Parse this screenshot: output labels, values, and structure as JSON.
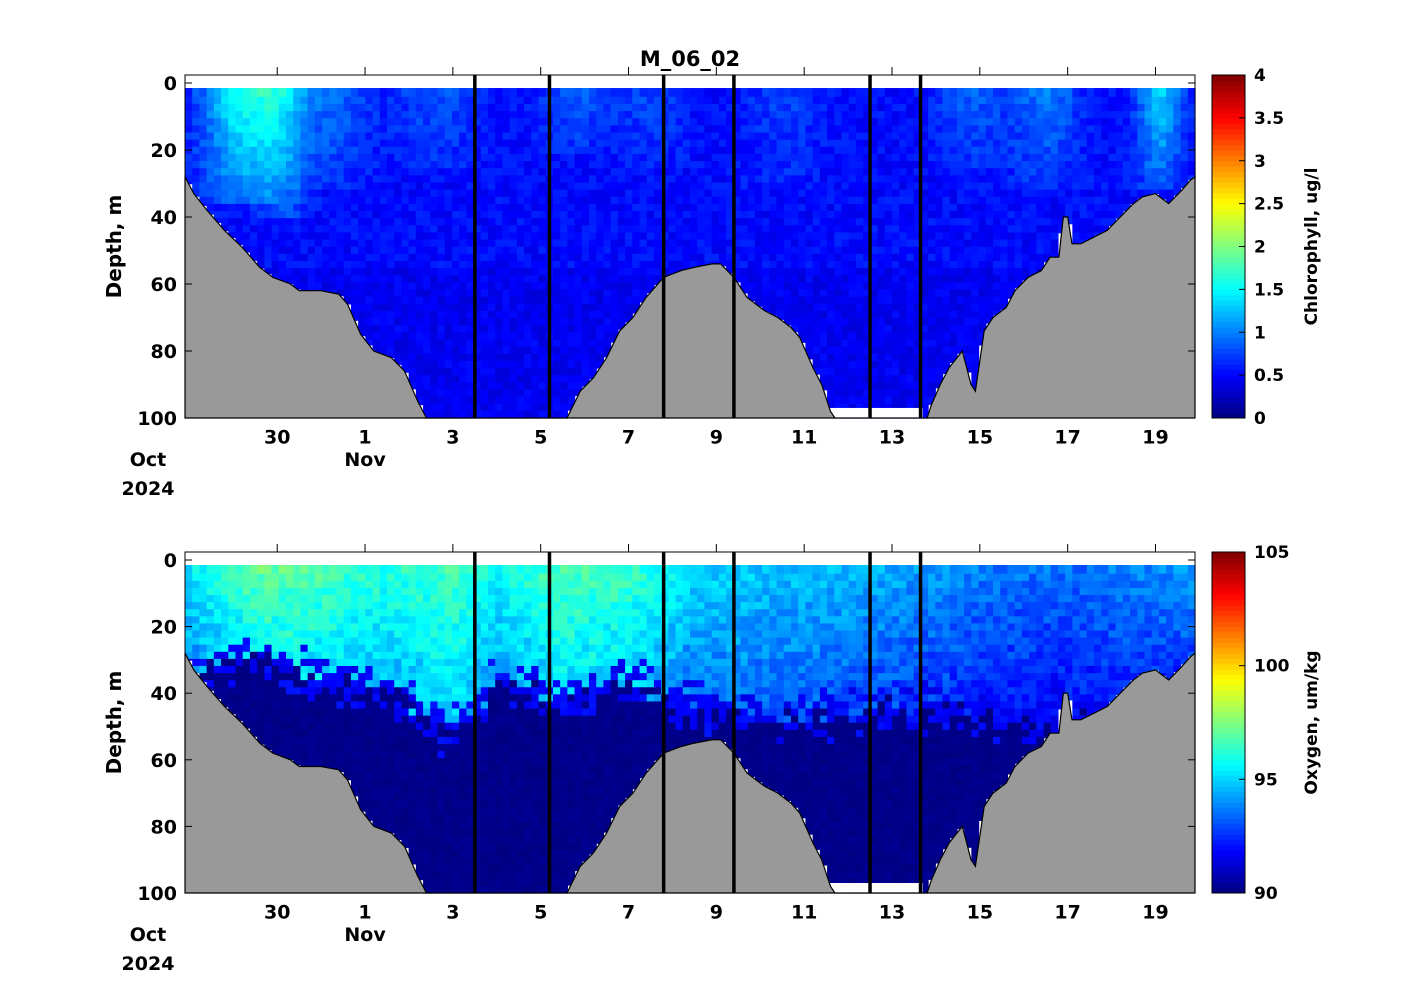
{
  "title": "M_06_02",
  "chart_data": [
    {
      "type": "heatmap",
      "variable": "Chlorophyll",
      "ylabel": "Depth, m",
      "colorbar_label": "Chlorophyll, ug/l",
      "ylim": [
        0,
        100
      ],
      "y_ticks": [
        "0",
        "20",
        "40",
        "60",
        "80",
        "100"
      ],
      "x_tick_labels": [
        "30",
        "1",
        "3",
        "5",
        "7",
        "9",
        "11",
        "13",
        "15",
        "17",
        "19"
      ],
      "x_month_labels": [
        {
          "month": "Oct",
          "year": "2024"
        },
        {
          "month": "Nov",
          "year": ""
        }
      ],
      "clim": [
        0,
        4
      ],
      "colorbar_ticks": [
        "0",
        "0.5",
        "1",
        "1.5",
        "2",
        "2.5",
        "3",
        "3.5",
        "4"
      ],
      "colormap": "jet",
      "bathymetry_color": "#999999",
      "background_value": 0.45,
      "blooms": [
        {
          "center_day": 29.2,
          "width": 0.9,
          "value": 1.5,
          "depth_max": 35
        },
        {
          "center_day": 30.1,
          "width": 0.6,
          "value": 1.1,
          "depth_max": 40
        },
        {
          "center_day": 31.3,
          "width": 0.8,
          "value": 0.85,
          "depth_max": 30
        },
        {
          "center_day": 33.6,
          "width": 1.0,
          "value": 0.75,
          "depth_max": 25
        },
        {
          "center_day": 36.8,
          "width": 0.8,
          "value": 0.8,
          "depth_max": 20
        },
        {
          "center_day": 38.5,
          "width": 0.8,
          "value": 0.7,
          "depth_max": 25
        },
        {
          "center_day": 41.5,
          "width": 0.8,
          "value": 0.7,
          "depth_max": 30
        },
        {
          "center_day": 45.8,
          "width": 0.8,
          "value": 0.8,
          "depth_max": 25
        },
        {
          "center_day": 47.5,
          "width": 0.8,
          "value": 0.9,
          "depth_max": 30
        },
        {
          "center_day": 50.1,
          "width": 0.5,
          "value": 1.3,
          "depth_max": 30
        }
      ]
    },
    {
      "type": "heatmap",
      "variable": "Oxygen",
      "ylabel": "Depth, m",
      "colorbar_label": "Oxygen, um/kg",
      "ylim": [
        0,
        100
      ],
      "y_ticks": [
        "0",
        "20",
        "40",
        "60",
        "80",
        "100"
      ],
      "x_tick_labels": [
        "30",
        "1",
        "3",
        "5",
        "7",
        "9",
        "11",
        "13",
        "15",
        "17",
        "19"
      ],
      "x_month_labels": [
        {
          "month": "Oct",
          "year": "2024"
        },
        {
          "month": "Nov",
          "year": ""
        }
      ],
      "clim": [
        90,
        105
      ],
      "colorbar_ticks": [
        "90",
        "95",
        "100",
        "105"
      ],
      "colormap": "jet",
      "bathymetry_color": "#999999",
      "deep_value": 90,
      "surface_profile": [
        {
          "day": 28.0,
          "value": 95.5,
          "mixed_depth": 30
        },
        {
          "day": 29.5,
          "value": 97.3,
          "mixed_depth": 24
        },
        {
          "day": 31.0,
          "value": 96.8,
          "mixed_depth": 32
        },
        {
          "day": 32.5,
          "value": 96.2,
          "mixed_depth": 34
        },
        {
          "day": 34.0,
          "value": 96.6,
          "mixed_depth": 48
        },
        {
          "day": 35.0,
          "value": 95.8,
          "mixed_depth": 32
        },
        {
          "day": 36.5,
          "value": 96.8,
          "mixed_depth": 38
        },
        {
          "day": 38.0,
          "value": 96.6,
          "mixed_depth": 32
        },
        {
          "day": 39.5,
          "value": 95.2,
          "mixed_depth": 40
        },
        {
          "day": 41.5,
          "value": 94.8,
          "mixed_depth": 44
        },
        {
          "day": 44.0,
          "value": 94.5,
          "mixed_depth": 40
        },
        {
          "day": 46.0,
          "value": 93.8,
          "mixed_depth": 42
        },
        {
          "day": 48.0,
          "value": 93.5,
          "mixed_depth": 45
        },
        {
          "day": 50.5,
          "value": 94.2,
          "mixed_depth": 35
        }
      ]
    }
  ],
  "x_axis": {
    "day_min": 27.9,
    "day_max": 50.9
  },
  "x_tick_days": [
    30,
    32,
    34,
    36,
    38,
    40,
    42,
    44,
    46,
    48,
    50
  ],
  "month_tick_days": [
    30,
    32
  ],
  "section_lines_day": [
    34.5,
    36.2,
    38.8,
    40.4,
    43.5,
    44.65
  ],
  "bottom_depth_profile": [
    [
      27.9,
      28
    ],
    [
      28.1,
      33
    ],
    [
      28.4,
      38
    ],
    [
      28.8,
      44
    ],
    [
      29.2,
      49
    ],
    [
      29.6,
      55
    ],
    [
      29.9,
      58
    ],
    [
      30.3,
      60
    ],
    [
      30.5,
      62
    ],
    [
      31.0,
      62
    ],
    [
      31.4,
      63
    ],
    [
      31.6,
      66
    ],
    [
      31.9,
      75
    ],
    [
      32.2,
      80
    ],
    [
      32.6,
      82
    ],
    [
      32.9,
      86
    ],
    [
      33.2,
      95
    ],
    [
      33.4,
      100
    ],
    [
      33.6,
      100
    ],
    [
      34.0,
      100
    ],
    [
      35.0,
      100
    ],
    [
      36.0,
      100
    ],
    [
      36.6,
      100
    ],
    [
      36.9,
      92
    ],
    [
      37.2,
      88
    ],
    [
      37.5,
      82
    ],
    [
      37.8,
      74
    ],
    [
      38.1,
      70
    ],
    [
      38.4,
      64
    ],
    [
      38.8,
      58
    ],
    [
      39.2,
      56
    ],
    [
      39.5,
      55
    ],
    [
      39.9,
      54
    ],
    [
      40.1,
      54
    ],
    [
      40.4,
      58
    ],
    [
      40.7,
      64
    ],
    [
      41.1,
      68
    ],
    [
      41.4,
      70
    ],
    [
      41.7,
      73
    ],
    [
      41.9,
      76
    ],
    [
      42.2,
      85
    ],
    [
      42.4,
      90
    ],
    [
      42.6,
      98
    ],
    [
      42.7,
      100
    ],
    [
      44.7,
      100
    ],
    [
      44.8,
      100
    ],
    [
      44.9,
      96
    ],
    [
      45.1,
      90
    ],
    [
      45.3,
      85
    ],
    [
      45.6,
      80
    ],
    [
      45.7,
      85
    ],
    [
      45.8,
      90
    ],
    [
      45.9,
      92
    ],
    [
      46.0,
      83
    ],
    [
      46.1,
      74
    ],
    [
      46.3,
      70
    ],
    [
      46.6,
      67
    ],
    [
      46.8,
      62
    ],
    [
      47.1,
      58
    ],
    [
      47.4,
      56
    ],
    [
      47.6,
      52
    ],
    [
      47.8,
      52
    ],
    [
      47.9,
      40
    ],
    [
      48.0,
      40
    ],
    [
      48.1,
      48
    ],
    [
      48.3,
      48
    ],
    [
      48.6,
      46
    ],
    [
      48.9,
      44
    ],
    [
      49.2,
      40
    ],
    [
      49.5,
      36
    ],
    [
      49.7,
      34
    ],
    [
      50.0,
      33
    ],
    [
      50.3,
      36
    ],
    [
      50.6,
      32
    ],
    [
      50.8,
      29
    ],
    [
      50.9,
      28
    ]
  ],
  "no_data_intervals": [
    {
      "start": 42.4,
      "end": 44.7,
      "depth_from": 97,
      "depth_to": 100
    }
  ]
}
